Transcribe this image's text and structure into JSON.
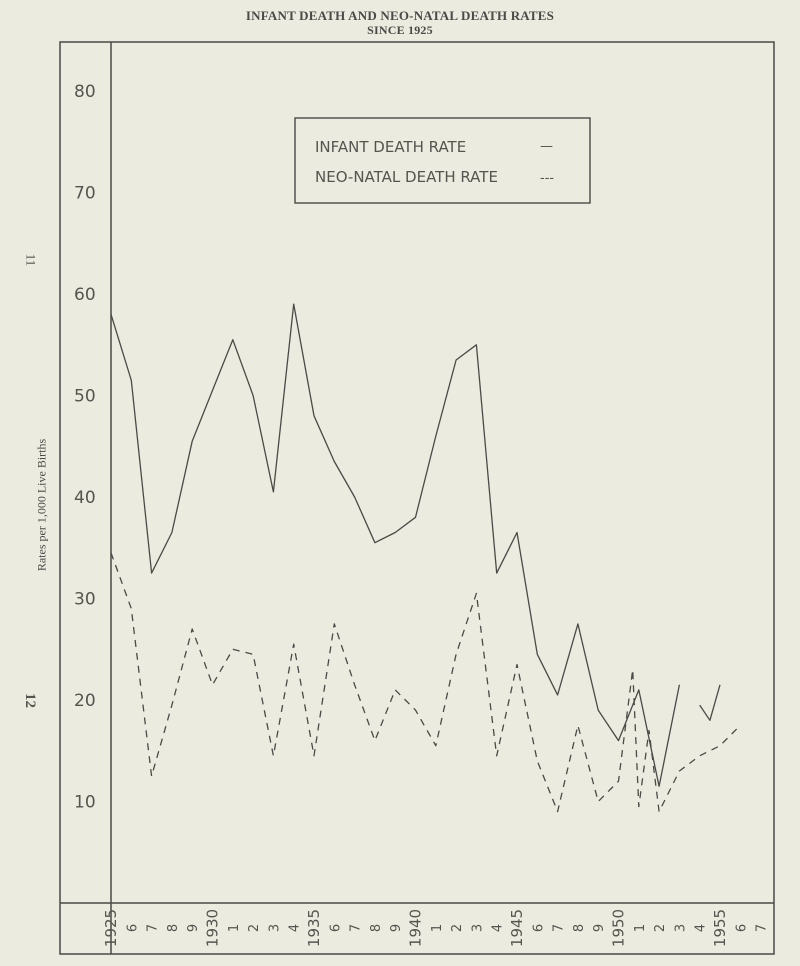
{
  "page": {
    "side_numbers": [
      "11",
      "12"
    ]
  },
  "chart_data": {
    "type": "line",
    "title": "INFANT DEATH AND NEO-NATAL DEATH RATES",
    "subtitle": "SINCE 1925",
    "ylabel": "Rates per 1,000 Live Births",
    "xlabel": "",
    "ylim": [
      0,
      85
    ],
    "xlim": [
      1925,
      1957
    ],
    "yticks": [
      10,
      20,
      30,
      40,
      50,
      60,
      70,
      80
    ],
    "xtick_labels": [
      "1925",
      "6",
      "7",
      "8",
      "9",
      "1930",
      "1",
      "2",
      "3",
      "4",
      "1935",
      "6",
      "7",
      "8",
      "9",
      "1940",
      "1",
      "2",
      "3",
      "4",
      "1945",
      "6",
      "7",
      "8",
      "9",
      "1950",
      "1",
      "2",
      "3",
      "4",
      "1955",
      "6",
      "7"
    ],
    "grid": false,
    "legend_position": "top-center",
    "legend": [
      {
        "label": "INFANT DEATH RATE",
        "symbol": "—"
      },
      {
        "label": "NEO-NATAL DEATH RATE",
        "symbol": "---"
      }
    ],
    "series": [
      {
        "name": "INFANT DEATH RATE",
        "style": "solid",
        "segments": [
          {
            "x": [
              1925,
              1926,
              1927,
              1928,
              1929,
              1930,
              1931,
              1932,
              1933,
              1934,
              1935,
              1936,
              1937,
              1938,
              1939,
              1940,
              1941,
              1942,
              1943,
              1944,
              1945,
              1946,
              1947,
              1948,
              1949,
              1950,
              1951,
              1952,
              1953
            ],
            "y": [
              58,
              51.5,
              32.5,
              36.5,
              45.5,
              50.5,
              55.5,
              50,
              40.5,
              59,
              48,
              43.5,
              40,
              35.5,
              36.5,
              38,
              46,
              53.5,
              55,
              32.5,
              36.5,
              24.5,
              20.5,
              27.5,
              19,
              16,
              21,
              11.5,
              21.5
            ]
          },
          {
            "x": [
              1954,
              1954.5,
              1955
            ],
            "y": [
              19.5,
              18,
              21.5
            ]
          }
        ]
      },
      {
        "name": "NEO-NATAL DEATH RATE",
        "style": "dashed",
        "segments": [
          {
            "x": [
              1925,
              1926,
              1927,
              1928,
              1929,
              1930,
              1931,
              1932,
              1933,
              1934,
              1935,
              1936,
              1937,
              1938,
              1939,
              1940,
              1941,
              1942,
              1943,
              1944,
              1945,
              1946,
              1947,
              1948,
              1949,
              1950,
              1950.7,
              1951,
              1951.5,
              1952,
              1953,
              1954,
              1955,
              1956
            ],
            "y": [
              34.5,
              29,
              12.5,
              19.5,
              27,
              21.5,
              25,
              24.5,
              14.5,
              25.5,
              14.5,
              27.5,
              21.5,
              16,
              21,
              19,
              15.5,
              24.5,
              30.5,
              14.5,
              23.5,
              14,
              9,
              17.5,
              10,
              12,
              23,
              9.5,
              17,
              9,
              13,
              14.5,
              15.5,
              17.5
            ]
          }
        ]
      }
    ]
  }
}
